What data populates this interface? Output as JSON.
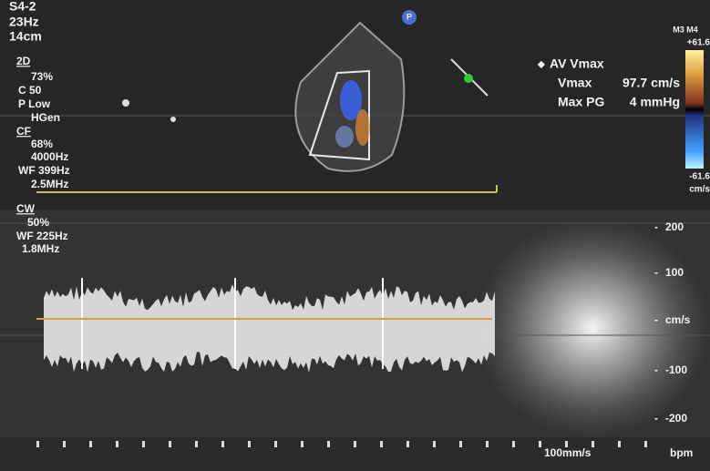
{
  "header": {
    "probe": "S4-2",
    "frame_rate": "23Hz",
    "depth": "14cm"
  },
  "mode_2d": {
    "label": "2D",
    "gain": "73%",
    "compression": "C 50",
    "power": "P Low",
    "harmonic": "HGen"
  },
  "color_flow": {
    "label": "CF",
    "gain": "68%",
    "prf": "4000Hz",
    "wall_filter": "WF 399Hz",
    "frequency": "2.5MHz"
  },
  "doppler_cw": {
    "label": "CW",
    "gain": "50%",
    "wall_filter": "WF 225Hz",
    "frequency": "1.8MHz"
  },
  "measurement": {
    "title": "AV Vmax",
    "rows": [
      {
        "label": "Vmax",
        "value": "97.7 cm/s"
      },
      {
        "label": "Max PG",
        "value": "4 mmHg"
      }
    ]
  },
  "color_scale": {
    "title": "M3 M4",
    "max": "+61.6",
    "min": "-61.6",
    "unit": "cm/s"
  },
  "velocity_scale": {
    "labels": [
      "200",
      "100",
      "cm/s",
      "-100",
      "-200"
    ]
  },
  "marker": "P",
  "sweep_speed": "100mm/s",
  "heart_rate_unit": "bpm"
}
